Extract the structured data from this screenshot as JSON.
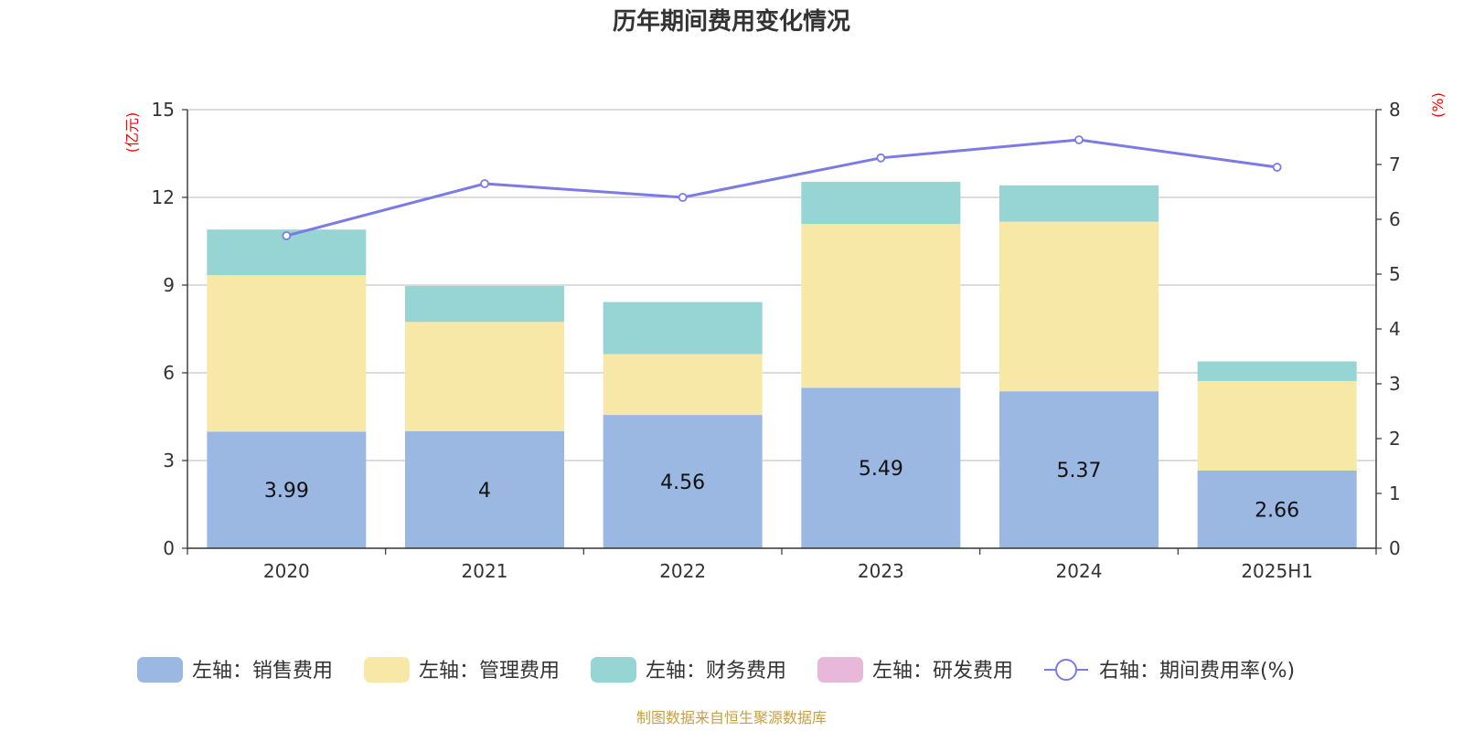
{
  "chart_data": {
    "type": "bar",
    "title": "历年期间费用变化情况",
    "categories": [
      "2020",
      "2021",
      "2022",
      "2023",
      "2024",
      "2025H1"
    ],
    "left_axis": {
      "unit_label": "(亿元)",
      "ylim": [
        0,
        15
      ],
      "ticks": [
        0,
        3,
        6,
        9,
        12,
        15
      ]
    },
    "right_axis": {
      "unit_label": "(%)",
      "ylim": [
        0,
        8
      ],
      "ticks": [
        0,
        1,
        2,
        3,
        4,
        5,
        6,
        7,
        8
      ]
    },
    "series": [
      {
        "name": "左轴：销售费用",
        "kind": "stacked-bar",
        "axis": "left",
        "color": "#9bb8e2",
        "values": [
          3.99,
          4.0,
          4.56,
          5.49,
          5.37,
          2.66
        ],
        "labels": [
          "3.99",
          "4",
          "4.56",
          "5.49",
          "5.37",
          "2.66"
        ]
      },
      {
        "name": "左轴：管理费用",
        "kind": "stacked-bar",
        "axis": "left",
        "color": "#f8e8a8",
        "values": [
          5.35,
          3.74,
          2.08,
          5.6,
          5.8,
          3.06
        ]
      },
      {
        "name": "左轴：财务费用",
        "kind": "stacked-bar",
        "axis": "left",
        "color": "#97d4d4",
        "values": [
          1.56,
          1.23,
          1.78,
          1.44,
          1.24,
          0.67
        ]
      },
      {
        "name": "左轴：研发费用",
        "kind": "stacked-bar",
        "axis": "left",
        "color": "#e7b8d9",
        "values": [
          0,
          0,
          0,
          0,
          0,
          0
        ]
      },
      {
        "name": "右轴：期间费用率(%)",
        "kind": "line",
        "axis": "right",
        "color": "#7b7ae6",
        "values": [
          5.7,
          6.65,
          6.4,
          7.12,
          7.45,
          6.95
        ]
      }
    ],
    "grid": true,
    "legend_position": "bottom",
    "source": "制图数据来自恒生聚源数据库"
  }
}
